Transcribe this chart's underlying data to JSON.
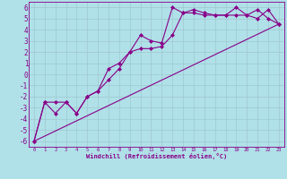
{
  "xlabel": "Windchill (Refroidissement éolien,°C)",
  "bg_color": "#b0e0e8",
  "grid_color": "#9fc8d0",
  "line_color": "#880088",
  "xlim": [
    -0.5,
    23.5
  ],
  "ylim": [
    -6.5,
    6.5
  ],
  "xticks": [
    0,
    1,
    2,
    3,
    4,
    5,
    6,
    7,
    8,
    9,
    10,
    11,
    12,
    13,
    14,
    15,
    16,
    17,
    18,
    19,
    20,
    21,
    22,
    23
  ],
  "yticks": [
    -6,
    -5,
    -4,
    -3,
    -2,
    -1,
    0,
    1,
    2,
    3,
    4,
    5,
    6
  ],
  "line1_x": [
    0,
    1,
    2,
    3,
    4,
    5,
    6,
    7,
    8,
    9,
    10,
    11,
    12,
    13,
    14,
    15,
    16,
    17,
    18,
    19,
    20,
    21,
    22,
    23
  ],
  "line1_y": [
    -6.0,
    -2.5,
    -3.5,
    -2.5,
    -3.5,
    -2.0,
    -1.5,
    -0.5,
    0.5,
    2.0,
    3.5,
    3.0,
    2.8,
    6.0,
    5.5,
    5.8,
    5.5,
    5.3,
    5.3,
    6.0,
    5.3,
    5.8,
    5.0,
    4.5
  ],
  "line2_x": [
    0,
    1,
    2,
    3,
    4,
    5,
    6,
    7,
    8,
    9,
    10,
    11,
    12,
    13,
    14,
    15,
    16,
    17,
    18,
    19,
    20,
    21,
    22,
    23
  ],
  "line2_y": [
    -6.0,
    -2.5,
    -2.5,
    -2.5,
    -3.5,
    -2.0,
    -1.5,
    0.5,
    1.0,
    2.0,
    2.3,
    2.3,
    2.5,
    3.5,
    5.5,
    5.5,
    5.3,
    5.3,
    5.3,
    5.3,
    5.3,
    5.0,
    5.8,
    4.5
  ],
  "line3_x": [
    0,
    23
  ],
  "line3_y": [
    -6.0,
    4.5
  ]
}
